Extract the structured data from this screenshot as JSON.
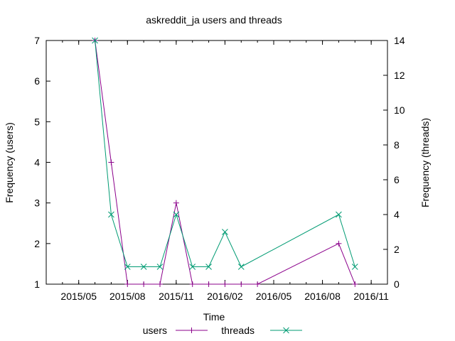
{
  "chart_data": {
    "type": "line",
    "title": "askreddit_ja users and threads",
    "xlabel": "Time",
    "ylabel_left": "Frequency (users)",
    "ylabel_right": "Frequency (threads)",
    "ylim_left": [
      1,
      7
    ],
    "ylim_right": [
      0,
      14
    ],
    "yticks_left": [
      "1",
      "2",
      "3",
      "4",
      "5",
      "6",
      "7"
    ],
    "yticks_right": [
      "0",
      "2",
      "4",
      "6",
      "8",
      "10",
      "12",
      "14"
    ],
    "xlim": [
      "2015-03",
      "2016-12"
    ],
    "xticks": [
      {
        "label": "2015/05",
        "date": "2015-05"
      },
      {
        "label": "2015/08",
        "date": "2015-08"
      },
      {
        "label": "2015/11",
        "date": "2015-11"
      },
      {
        "label": "2016/02",
        "date": "2016-02"
      },
      {
        "label": "2016/05",
        "date": "2016-05"
      },
      {
        "label": "2016/08",
        "date": "2016-08"
      },
      {
        "label": "2016/11",
        "date": "2016-11"
      }
    ],
    "grid": false,
    "legend_position": "bottom-center",
    "series": [
      {
        "name": "users",
        "axis": "left",
        "color": "#8b008b",
        "marker": "+",
        "x": [
          "2015-06",
          "2015-07",
          "2015-08",
          "2015-09",
          "2015-10",
          "2015-11",
          "2015-12",
          "2016-01",
          "2016-02",
          "2016-03",
          "2016-04",
          "2016-09",
          "2016-10"
        ],
        "values": [
          7,
          4,
          1,
          1,
          1,
          3,
          1,
          1,
          1,
          1,
          1,
          2,
          1
        ]
      },
      {
        "name": "threads",
        "axis": "right",
        "color": "#009b73",
        "marker": "x",
        "x": [
          "2015-06",
          "2015-07",
          "2015-08",
          "2015-09",
          "2015-10",
          "2015-11",
          "2015-12",
          "2016-01",
          "2016-02",
          "2016-03",
          "2016-09",
          "2016-10"
        ],
        "values": [
          14,
          4,
          1,
          1,
          1,
          4,
          1,
          1,
          3,
          1,
          4,
          1
        ]
      }
    ]
  }
}
